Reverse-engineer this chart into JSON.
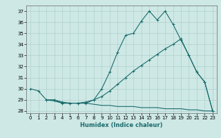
{
  "xlabel": "Humidex (Indice chaleur)",
  "bg_color": "#cde8e5",
  "line_color": "#1a6b6b",
  "grid_color": "#afd0cd",
  "xlim": [
    -0.5,
    23.5
  ],
  "ylim": [
    27.8,
    37.5
  ],
  "yticks": [
    28,
    29,
    30,
    31,
    32,
    33,
    34,
    35,
    36,
    37
  ],
  "xticks": [
    0,
    1,
    2,
    3,
    4,
    5,
    6,
    7,
    8,
    9,
    10,
    11,
    12,
    13,
    14,
    15,
    16,
    17,
    18,
    19,
    20,
    21,
    22,
    23
  ],
  "line1_x": [
    0,
    1,
    2,
    3,
    4,
    5,
    6,
    7,
    8,
    9,
    10,
    11,
    12,
    13,
    14,
    15,
    16,
    17,
    18,
    19,
    20,
    21,
    22,
    23
  ],
  "line1_y": [
    30.0,
    29.8,
    29.0,
    29.0,
    28.7,
    28.7,
    28.7,
    28.7,
    29.0,
    30.0,
    31.5,
    33.3,
    34.8,
    35.0,
    36.1,
    37.0,
    36.2,
    37.0,
    35.8,
    34.4,
    33.0,
    31.5,
    30.6,
    28.0
  ],
  "line2_x": [
    2,
    3,
    4,
    5,
    6,
    7,
    8,
    9,
    10,
    11,
    12,
    13,
    14,
    15,
    16,
    17,
    18,
    19,
    20,
    21,
    22,
    23
  ],
  "line2_y": [
    29.0,
    29.0,
    28.8,
    28.7,
    28.7,
    28.8,
    29.0,
    29.3,
    29.8,
    30.4,
    31.0,
    31.6,
    32.1,
    32.6,
    33.1,
    33.6,
    34.0,
    34.5,
    33.0,
    31.5,
    30.6,
    28.0
  ],
  "line3_x": [
    2,
    3,
    4,
    5,
    6,
    7,
    8,
    9,
    10,
    11,
    12,
    13,
    14,
    15,
    16,
    17,
    18,
    19,
    20,
    21,
    22,
    23
  ],
  "line3_y": [
    29.0,
    28.9,
    28.7,
    28.7,
    28.7,
    28.7,
    28.6,
    28.5,
    28.5,
    28.4,
    28.4,
    28.4,
    28.3,
    28.3,
    28.3,
    28.2,
    28.2,
    28.2,
    28.1,
    28.1,
    28.0,
    28.0
  ]
}
